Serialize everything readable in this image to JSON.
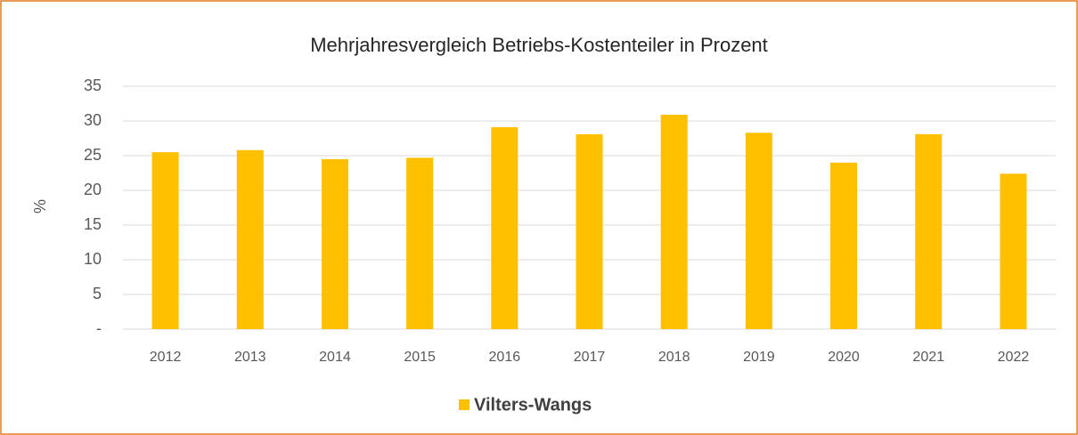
{
  "chart_data": {
    "type": "bar",
    "title": "Mehrjahresvergleich Betriebs-Kostenteiler in Prozent",
    "y_label": "%",
    "categories": [
      "2012",
      "2013",
      "2014",
      "2015",
      "2016",
      "2017",
      "2018",
      "2019",
      "2020",
      "2021",
      "2022"
    ],
    "series": [
      {
        "name": "Vilters-Wangs",
        "color": "#ffc000",
        "values": [
          25.5,
          25.8,
          24.5,
          24.7,
          29.1,
          28.1,
          30.9,
          28.3,
          24.0,
          28.1,
          22.4
        ]
      }
    ],
    "ylim": [
      0,
      35
    ],
    "yticks": [
      {
        "value": 0,
        "label": "-"
      },
      5,
      10,
      15,
      20,
      25,
      30,
      35
    ],
    "grid": true,
    "legend": "bottom"
  }
}
